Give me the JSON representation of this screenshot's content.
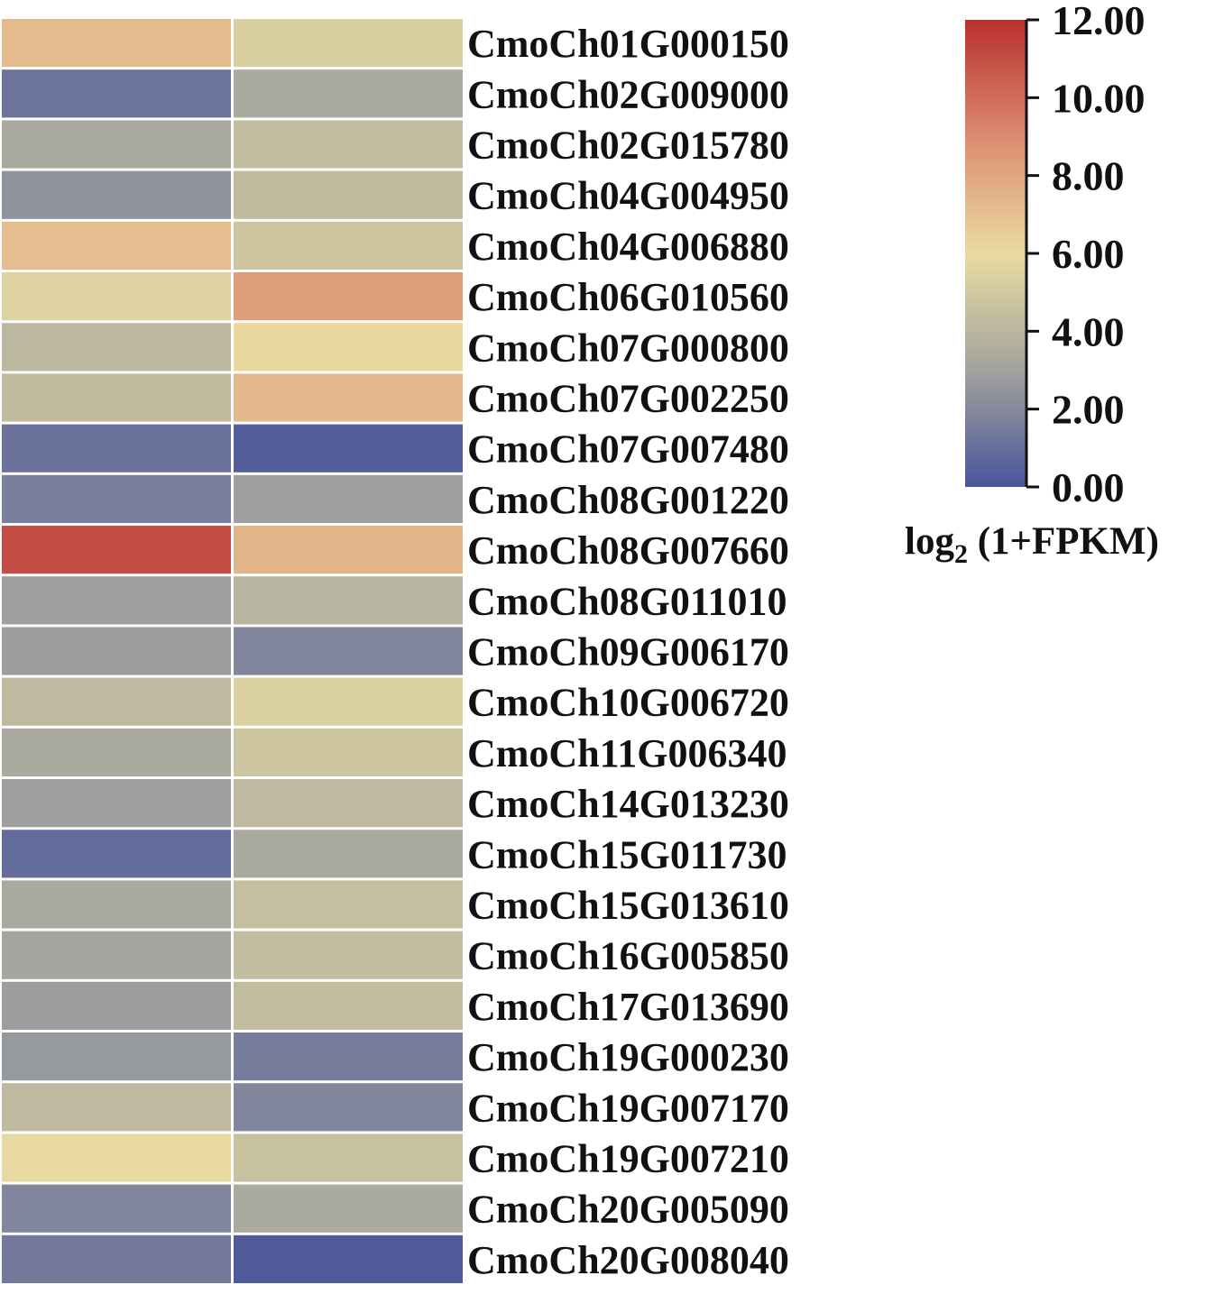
{
  "chart_data": {
    "type": "heatmap",
    "rows": [
      "CmoCh01G000150",
      "CmoCh02G009000",
      "CmoCh02G015780",
      "CmoCh04G004950",
      "CmoCh04G006880",
      "CmoCh06G010560",
      "CmoCh07G000800",
      "CmoCh07G002250",
      "CmoCh07G007480",
      "CmoCh08G001220",
      "CmoCh08G007660",
      "CmoCh08G011010",
      "CmoCh09G006170",
      "CmoCh10G006720",
      "CmoCh11G006340",
      "CmoCh14G013230",
      "CmoCh15G011730",
      "CmoCh15G013610",
      "CmoCh16G005850",
      "CmoCh17G013690",
      "CmoCh19G000230",
      "CmoCh19G007170",
      "CmoCh19G007210",
      "CmoCh20G005090",
      "CmoCh20G008040"
    ],
    "values": [
      [
        7.2,
        5.3
      ],
      [
        1.2,
        3.4
      ],
      [
        3.3,
        4.4
      ],
      [
        2.4,
        4.3
      ],
      [
        7.1,
        4.8
      ],
      [
        5.5,
        8.3
      ],
      [
        4.1,
        6.1
      ],
      [
        4.3,
        7.3
      ],
      [
        1.1,
        0.3
      ],
      [
        1.6,
        2.9
      ],
      [
        11.0,
        7.4
      ],
      [
        2.9,
        3.9
      ],
      [
        2.8,
        1.9
      ],
      [
        4.2,
        5.4
      ],
      [
        3.4,
        4.8
      ],
      [
        2.9,
        4.2
      ],
      [
        0.9,
        3.3
      ],
      [
        3.3,
        4.5
      ],
      [
        3.1,
        4.4
      ],
      [
        2.8,
        4.4
      ],
      [
        2.6,
        1.5
      ],
      [
        4.2,
        1.9
      ],
      [
        5.9,
        4.6
      ],
      [
        1.9,
        3.4
      ],
      [
        1.4,
        0.2
      ]
    ],
    "colorbar": {
      "min": 0,
      "max": 12,
      "ticks": [
        "12.00",
        "10.00",
        "8.00",
        "6.00",
        "4.00",
        "2.00",
        "0.00"
      ],
      "tick_values": [
        12,
        10,
        8,
        6,
        4,
        2,
        0
      ],
      "stops": [
        {
          "value": 0,
          "color": "#4a5599"
        },
        {
          "value": 3,
          "color": "#a2a39e"
        },
        {
          "value": 6,
          "color": "#e9dba0"
        },
        {
          "value": 9,
          "color": "#dc8b70"
        },
        {
          "value": 12,
          "color": "#b8302f"
        }
      ],
      "title_main": "log",
      "title_sub": "2",
      "title_rest": " (1+FPKM)"
    }
  }
}
